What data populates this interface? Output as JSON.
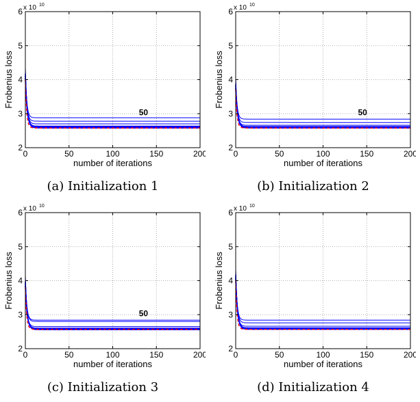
{
  "chart_data": [
    {
      "type": "line",
      "caption": "(a) Initialization 1",
      "ylabel": "Frobenius loss",
      "xlabel": "number of iterations",
      "y_multiplier": "x 10",
      "y_exponent": "10",
      "xlim": [
        0,
        200
      ],
      "ylim": [
        2,
        6
      ],
      "xticks": [
        "0",
        "50",
        "100",
        "150",
        "200"
      ],
      "yticks": [
        "2",
        "3",
        "4",
        "5",
        "6"
      ],
      "grid": true,
      "annotation": {
        "text": "50",
        "x": 130,
        "y": 2.95
      },
      "initial_value": 4.35,
      "blue_plateaus": [
        2.88,
        2.78,
        2.7,
        2.63,
        2.6,
        2.58
      ],
      "red_dashed_plateau": 2.58
    },
    {
      "type": "line",
      "caption": "(b) Initialization 2",
      "ylabel": "Frobenius loss",
      "xlabel": "number of iterations",
      "y_multiplier": "x 10",
      "y_exponent": "10",
      "xlim": [
        0,
        200
      ],
      "ylim": [
        2,
        6
      ],
      "xticks": [
        "0",
        "50",
        "100",
        "150",
        "200"
      ],
      "yticks": [
        "2",
        "3",
        "4",
        "5",
        "6"
      ],
      "grid": true,
      "annotation": {
        "text": "50",
        "x": 140,
        "y": 2.95
      },
      "initial_value": 4.05,
      "blue_plateaus": [
        2.84,
        2.74,
        2.66,
        2.62,
        2.6,
        2.58
      ],
      "red_dashed_plateau": 2.58
    },
    {
      "type": "line",
      "caption": "(c) Initialization 3",
      "ylabel": "Frobenius loss",
      "xlabel": "number of iterations",
      "y_multiplier": "x 10",
      "y_exponent": "10",
      "xlim": [
        0,
        200
      ],
      "ylim": [
        2,
        6
      ],
      "xticks": [
        "0",
        "50",
        "100",
        "150",
        "200"
      ],
      "yticks": [
        "2",
        "3",
        "4",
        "5",
        "6"
      ],
      "grid": true,
      "annotation": {
        "text": "50",
        "x": 130,
        "y": 2.95
      },
      "initial_value": 4.15,
      "blue_plateaus": [
        2.84,
        2.8,
        2.65,
        2.6,
        2.58,
        2.56
      ],
      "red_dashed_plateau": 2.57
    },
    {
      "type": "line",
      "caption": "(d) Initialization 4",
      "ylabel": "Frobenius loss",
      "xlabel": "number of iterations",
      "y_multiplier": "x 10",
      "y_exponent": "10",
      "xlim": [
        0,
        200
      ],
      "ylim": [
        2,
        6
      ],
      "xticks": [
        "0",
        "50",
        "100",
        "150",
        "200"
      ],
      "yticks": [
        "2",
        "3",
        "4",
        "5",
        "6"
      ],
      "grid": true,
      "initial_value": 4.35,
      "blue_plateaus": [
        2.84,
        2.76,
        2.66,
        2.61,
        2.59,
        2.57
      ],
      "red_dashed_plateau": 2.57
    }
  ],
  "colors": {
    "series": "#0000ff",
    "reference": "#ff0000",
    "grid": "#999999",
    "axis": "#000000"
  }
}
